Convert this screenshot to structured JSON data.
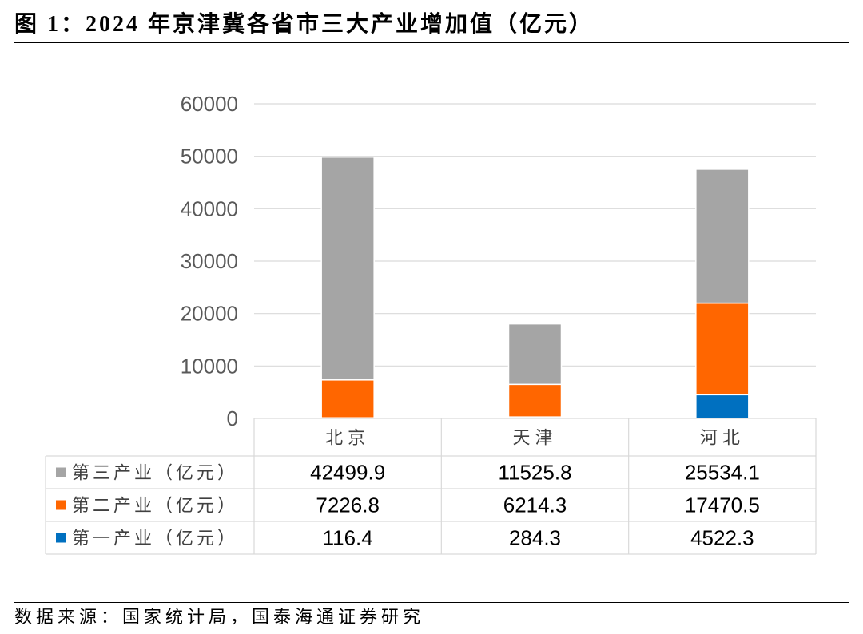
{
  "chart_data": {
    "type": "bar",
    "stacked": true,
    "title": "图 1：2024 年京津冀各省市三大产业增加值（亿元）",
    "categories": [
      "北京",
      "天津",
      "河北"
    ],
    "series": [
      {
        "name": "第三产业（亿元）",
        "values": [
          42499.9,
          11525.8,
          25534.1
        ],
        "color": "#a5a5a5"
      },
      {
        "name": "第二产业（亿元）",
        "values": [
          7226.8,
          6214.3,
          17470.5
        ],
        "color": "#ff6600"
      },
      {
        "name": "第一产业（亿元）",
        "values": [
          116.4,
          284.3,
          4522.3
        ],
        "color": "#0070c0"
      }
    ],
    "ylim": [
      0,
      60000
    ],
    "yticks": [
      0,
      10000,
      20000,
      30000,
      40000,
      50000,
      60000
    ],
    "grid": true,
    "legend": "data-table"
  },
  "source": "数据来源：国家统计局，国泰海通证券研究"
}
